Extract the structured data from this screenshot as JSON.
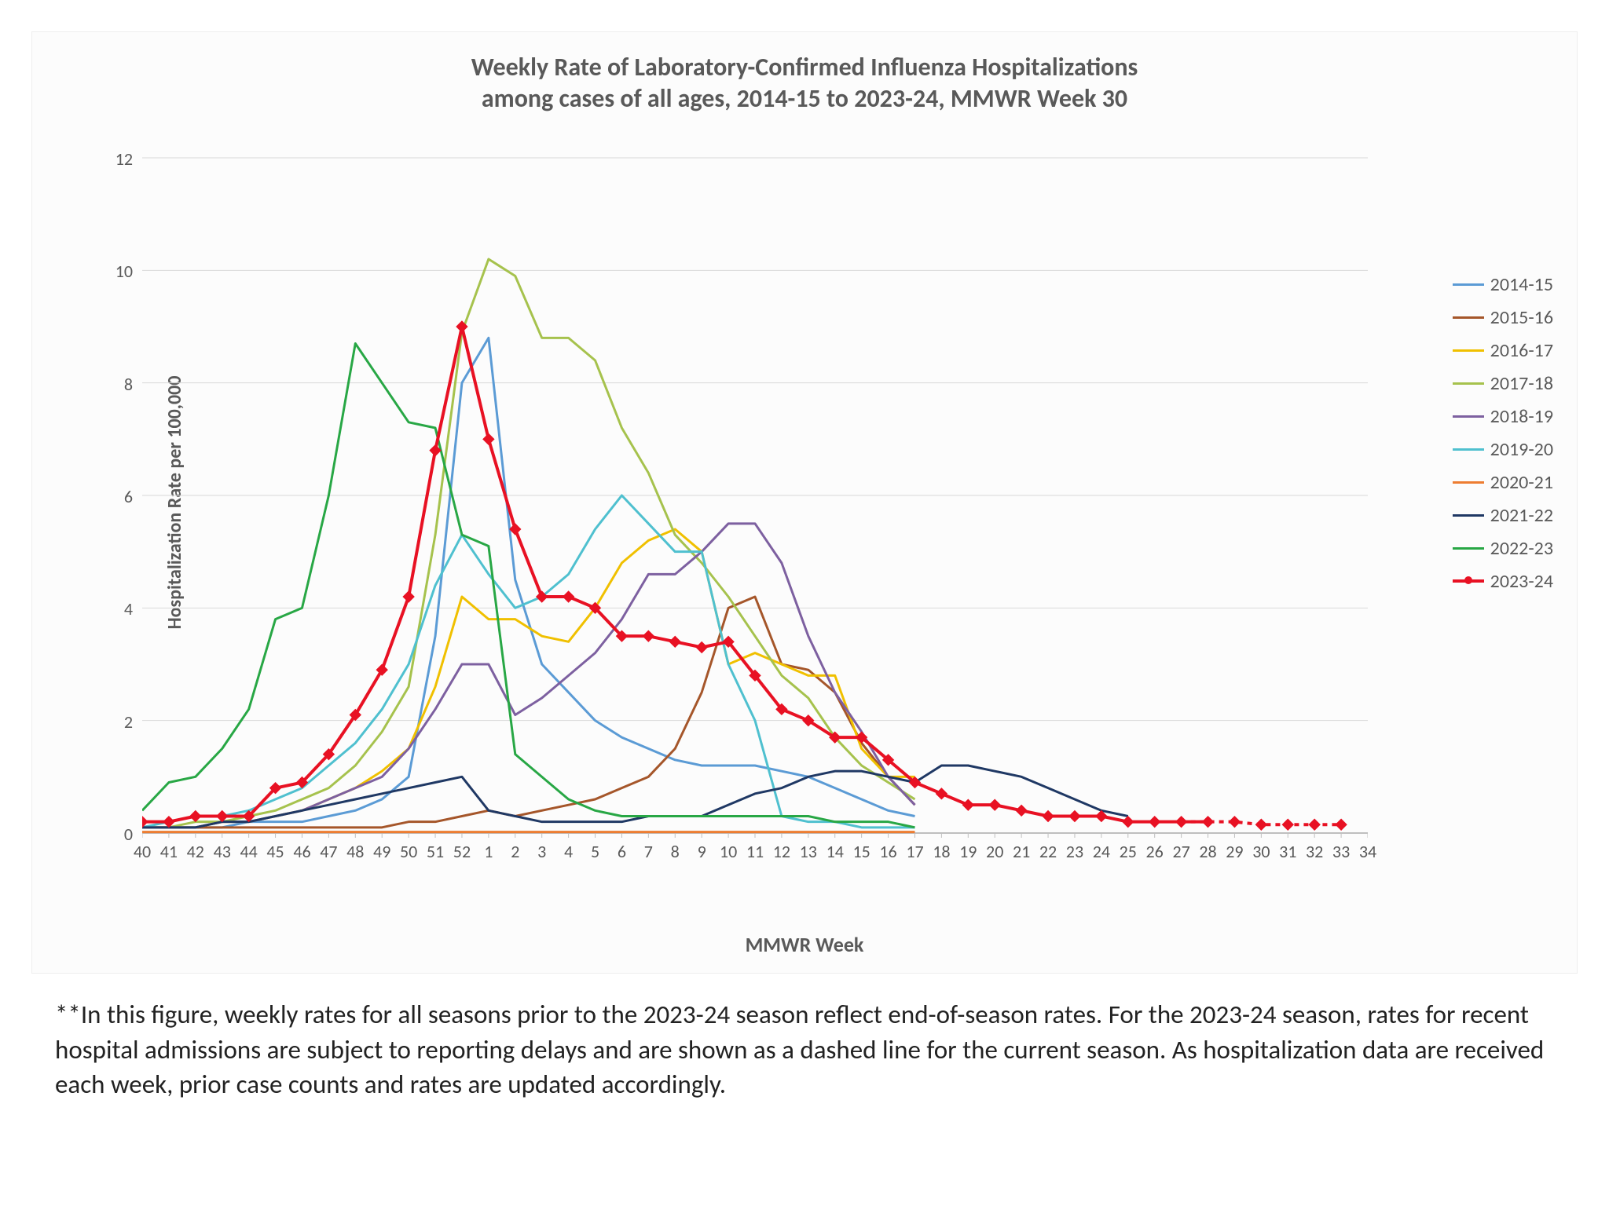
{
  "chart": {
    "type": "line",
    "title_line1": "Weekly Rate of Laboratory-Confirmed Influenza Hospitalizations",
    "title_line2": "among cases of all ages, 2014-15 to 2023-24, MMWR Week 30",
    "title_fontsize": 32,
    "title_color": "#595959",
    "background_color": "#fcfcfc",
    "border_color": "#eeeeee",
    "plot_background": "#ffffff",
    "grid_color": "#d9d9d9",
    "axis_color": "#bfbfbf",
    "tick_label_color": "#595959",
    "tick_fontsize": 22,
    "x_label": "MMWR Week",
    "y_label": "Hospitalization Rate per 100,000",
    "label_fontsize": 26,
    "label_color": "#595959",
    "ylim": [
      0,
      12
    ],
    "ytick_step": 2,
    "x_categories": [
      "40",
      "41",
      "42",
      "43",
      "44",
      "45",
      "46",
      "47",
      "48",
      "49",
      "50",
      "51",
      "52",
      "1",
      "2",
      "3",
      "4",
      "5",
      "6",
      "7",
      "8",
      "9",
      "10",
      "11",
      "12",
      "13",
      "14",
      "15",
      "16",
      "17",
      "18",
      "19",
      "20",
      "21",
      "22",
      "23",
      "24",
      "25",
      "26",
      "27",
      "28",
      "29",
      "30",
      "31",
      "32",
      "33",
      "34"
    ],
    "line_width": 3,
    "legend_fontsize": 24,
    "series": [
      {
        "name": "2014-15",
        "color": "#5b9bd5",
        "values": [
          0.1,
          0.1,
          0.1,
          0.1,
          0.2,
          0.2,
          0.2,
          0.3,
          0.4,
          0.6,
          1.0,
          3.5,
          8.0,
          8.8,
          4.5,
          3.0,
          2.5,
          2.0,
          1.7,
          1.5,
          1.3,
          1.2,
          1.2,
          1.2,
          1.1,
          1.0,
          0.8,
          0.6,
          0.4,
          0.3
        ]
      },
      {
        "name": "2015-16",
        "color": "#a5562a",
        "values": [
          0.1,
          0.1,
          0.1,
          0.1,
          0.1,
          0.1,
          0.1,
          0.1,
          0.1,
          0.1,
          0.2,
          0.2,
          0.3,
          0.4,
          0.3,
          0.4,
          0.5,
          0.6,
          0.8,
          1.0,
          1.5,
          2.5,
          4.0,
          4.2,
          3.0,
          2.9,
          2.5,
          1.6,
          1.0,
          0.5
        ]
      },
      {
        "name": "2016-17",
        "color": "#f0c000",
        "values": [
          0.1,
          0.1,
          0.1,
          0.2,
          0.2,
          0.3,
          0.4,
          0.6,
          0.8,
          1.1,
          1.5,
          2.6,
          4.2,
          3.8,
          3.8,
          3.5,
          3.4,
          4.0,
          4.8,
          5.2,
          5.4,
          5.0,
          3.0,
          3.2,
          3.0,
          2.8,
          2.8,
          1.5,
          1.0,
          1.0
        ]
      },
      {
        "name": "2017-18",
        "color": "#a6c24d",
        "values": [
          0.1,
          0.1,
          0.2,
          0.2,
          0.3,
          0.4,
          0.6,
          0.8,
          1.2,
          1.8,
          2.6,
          5.3,
          8.9,
          10.2,
          9.9,
          8.8,
          8.8,
          8.4,
          7.2,
          6.4,
          5.3,
          4.8,
          4.2,
          3.5,
          2.8,
          2.4,
          1.7,
          1.2,
          0.9,
          0.6
        ]
      },
      {
        "name": "2018-19",
        "color": "#7d60a0",
        "values": [
          0.1,
          0.1,
          0.1,
          0.2,
          0.2,
          0.3,
          0.4,
          0.6,
          0.8,
          1.0,
          1.5,
          2.2,
          3.0,
          3.0,
          2.1,
          2.4,
          2.8,
          3.2,
          3.8,
          4.6,
          4.6,
          5.0,
          5.5,
          5.5,
          4.8,
          3.5,
          2.5,
          1.8,
          1.0,
          0.5
        ]
      },
      {
        "name": "2019-20",
        "color": "#4fc0cf",
        "values": [
          0.1,
          0.2,
          0.3,
          0.3,
          0.4,
          0.6,
          0.8,
          1.2,
          1.6,
          2.2,
          3.0,
          4.4,
          5.3,
          4.6,
          4.0,
          4.2,
          4.6,
          5.4,
          6.0,
          5.5,
          5.0,
          5.0,
          3.0,
          2.0,
          0.3,
          0.2,
          0.2,
          0.1,
          0.1,
          0.1
        ]
      },
      {
        "name": "2020-21",
        "color": "#ed7d31",
        "values": [
          0.02,
          0.02,
          0.02,
          0.02,
          0.02,
          0.02,
          0.02,
          0.02,
          0.02,
          0.02,
          0.02,
          0.02,
          0.02,
          0.02,
          0.02,
          0.02,
          0.02,
          0.02,
          0.02,
          0.02,
          0.02,
          0.02,
          0.02,
          0.02,
          0.02,
          0.02,
          0.02,
          0.02,
          0.02,
          0.02
        ]
      },
      {
        "name": "2021-22",
        "color": "#1f3864",
        "values": [
          0.1,
          0.1,
          0.1,
          0.2,
          0.2,
          0.3,
          0.4,
          0.5,
          0.6,
          0.7,
          0.8,
          0.9,
          1.0,
          0.4,
          0.3,
          0.2,
          0.2,
          0.2,
          0.2,
          0.3,
          0.3,
          0.3,
          0.5,
          0.7,
          0.8,
          1.0,
          1.1,
          1.1,
          1.0,
          0.9,
          1.2,
          1.2,
          1.1,
          1.0,
          0.8,
          0.6,
          0.4,
          0.3
        ]
      },
      {
        "name": "2022-23",
        "color": "#28a745",
        "values": [
          0.4,
          0.9,
          1.0,
          1.5,
          2.2,
          3.8,
          4.0,
          6.0,
          8.7,
          8.0,
          7.3,
          7.2,
          5.3,
          5.1,
          1.4,
          1.0,
          0.6,
          0.4,
          0.3,
          0.3,
          0.3,
          0.3,
          0.3,
          0.3,
          0.3,
          0.3,
          0.2,
          0.2,
          0.2,
          0.1
        ]
      },
      {
        "name": "2023-24",
        "color": "#e81123",
        "marker": "diamond",
        "marker_size": 7,
        "dashed_from_index": 40,
        "values": [
          0.2,
          0.2,
          0.3,
          0.3,
          0.3,
          0.8,
          0.9,
          1.4,
          2.1,
          2.9,
          4.2,
          6.8,
          9.0,
          7.0,
          5.4,
          4.2,
          4.2,
          4.0,
          3.5,
          3.5,
          3.4,
          3.3,
          3.4,
          2.8,
          2.2,
          2.0,
          1.7,
          1.7,
          1.3,
          0.9,
          0.7,
          0.5,
          0.5,
          0.4,
          0.3,
          0.3,
          0.3,
          0.2,
          0.2,
          0.2,
          0.2,
          0.2,
          0.15,
          0.15,
          0.15,
          0.15
        ]
      }
    ]
  },
  "caption": "**In this figure, weekly rates for all seasons prior to the 2023-24 season reflect end-of-season rates. For the 2023-24 season, rates for recent hospital admissions are subject to reporting delays and are shown as a dashed line for the current season. As hospitalization data are received each week, prior case counts and rates are updated accordingly."
}
